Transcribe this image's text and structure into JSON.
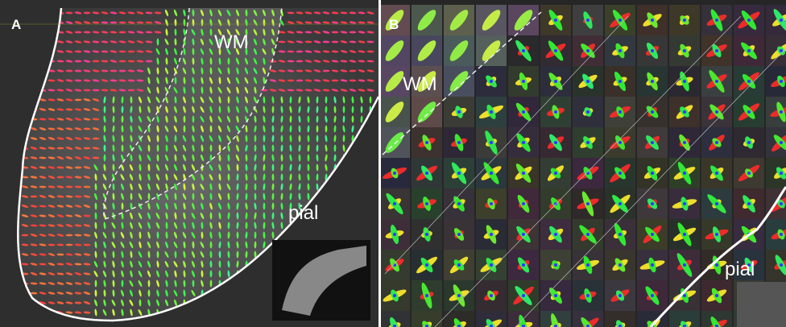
{
  "panel_a": {
    "label": "A",
    "wm": "WM",
    "pial": "pial"
  },
  "panel_b": {
    "label": "B",
    "wm": "WM",
    "pial": "pial"
  }
}
